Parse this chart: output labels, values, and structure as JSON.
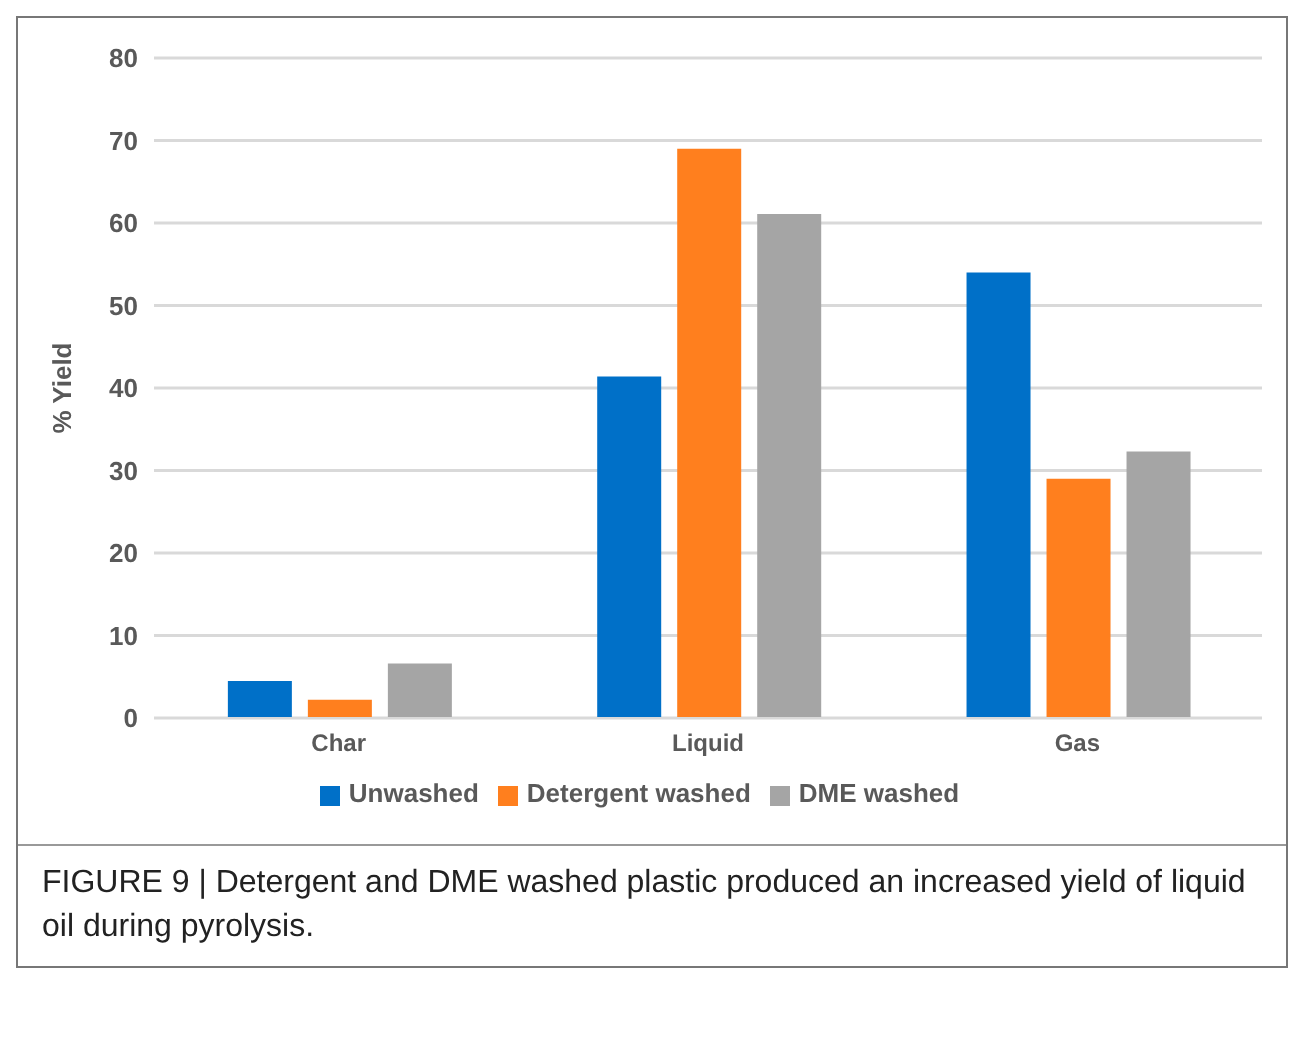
{
  "chart_data": {
    "type": "bar",
    "ylabel": "% Yield",
    "categories": [
      "Char",
      "Liquid",
      "Gas"
    ],
    "series": [
      {
        "name": "Unwashed",
        "color": "#0070c8",
        "values": [
          4.5,
          41.4,
          54
        ]
      },
      {
        "name": "Detergent washed",
        "color": "#ff7f1e",
        "values": [
          2.2,
          69,
          29
        ]
      },
      {
        "name": "DME washed",
        "color": "#a5a5a5",
        "values": [
          6.6,
          61.1,
          32.3
        ]
      }
    ],
    "ylim": [
      0,
      80
    ],
    "yticks": [
      0,
      10,
      20,
      30,
      40,
      50,
      60,
      70,
      80
    ],
    "grid": "y",
    "legend": "bottom",
    "annotations": [
      "FIGURE 9 | Detergent and DME washed plastic produced an increased yield of liquid oil during pyrolysis."
    ]
  }
}
